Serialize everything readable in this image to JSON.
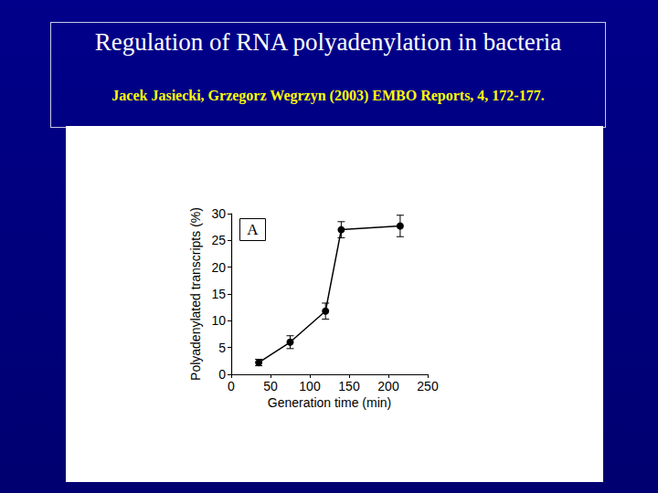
{
  "chart_data": {
    "type": "line",
    "title": "Regulation of RNA polyadenylation in bacteria",
    "subtitle": "Jacek Jasiecki, Grzegorz Wegrzyn (2003) EMBO Reports, 4, 172-177.",
    "annotation": "A",
    "xlabel": "Generation time (min)",
    "ylabel": "Polyadenylated transcripts (%)",
    "x": [
      35,
      75,
      120,
      140,
      215
    ],
    "values": [
      2.2,
      6,
      11.8,
      27,
      27.7
    ],
    "errors": [
      0.6,
      1.2,
      1.5,
      1.5,
      2.0
    ],
    "color": "#000000",
    "marker": "circle",
    "xlim": [
      0,
      250
    ],
    "xticks": [
      0,
      50,
      100,
      150,
      200,
      250
    ],
    "ylim": [
      0,
      30
    ],
    "yticks": [
      0,
      5,
      10,
      15,
      20,
      25,
      30
    ],
    "grid": false
  }
}
